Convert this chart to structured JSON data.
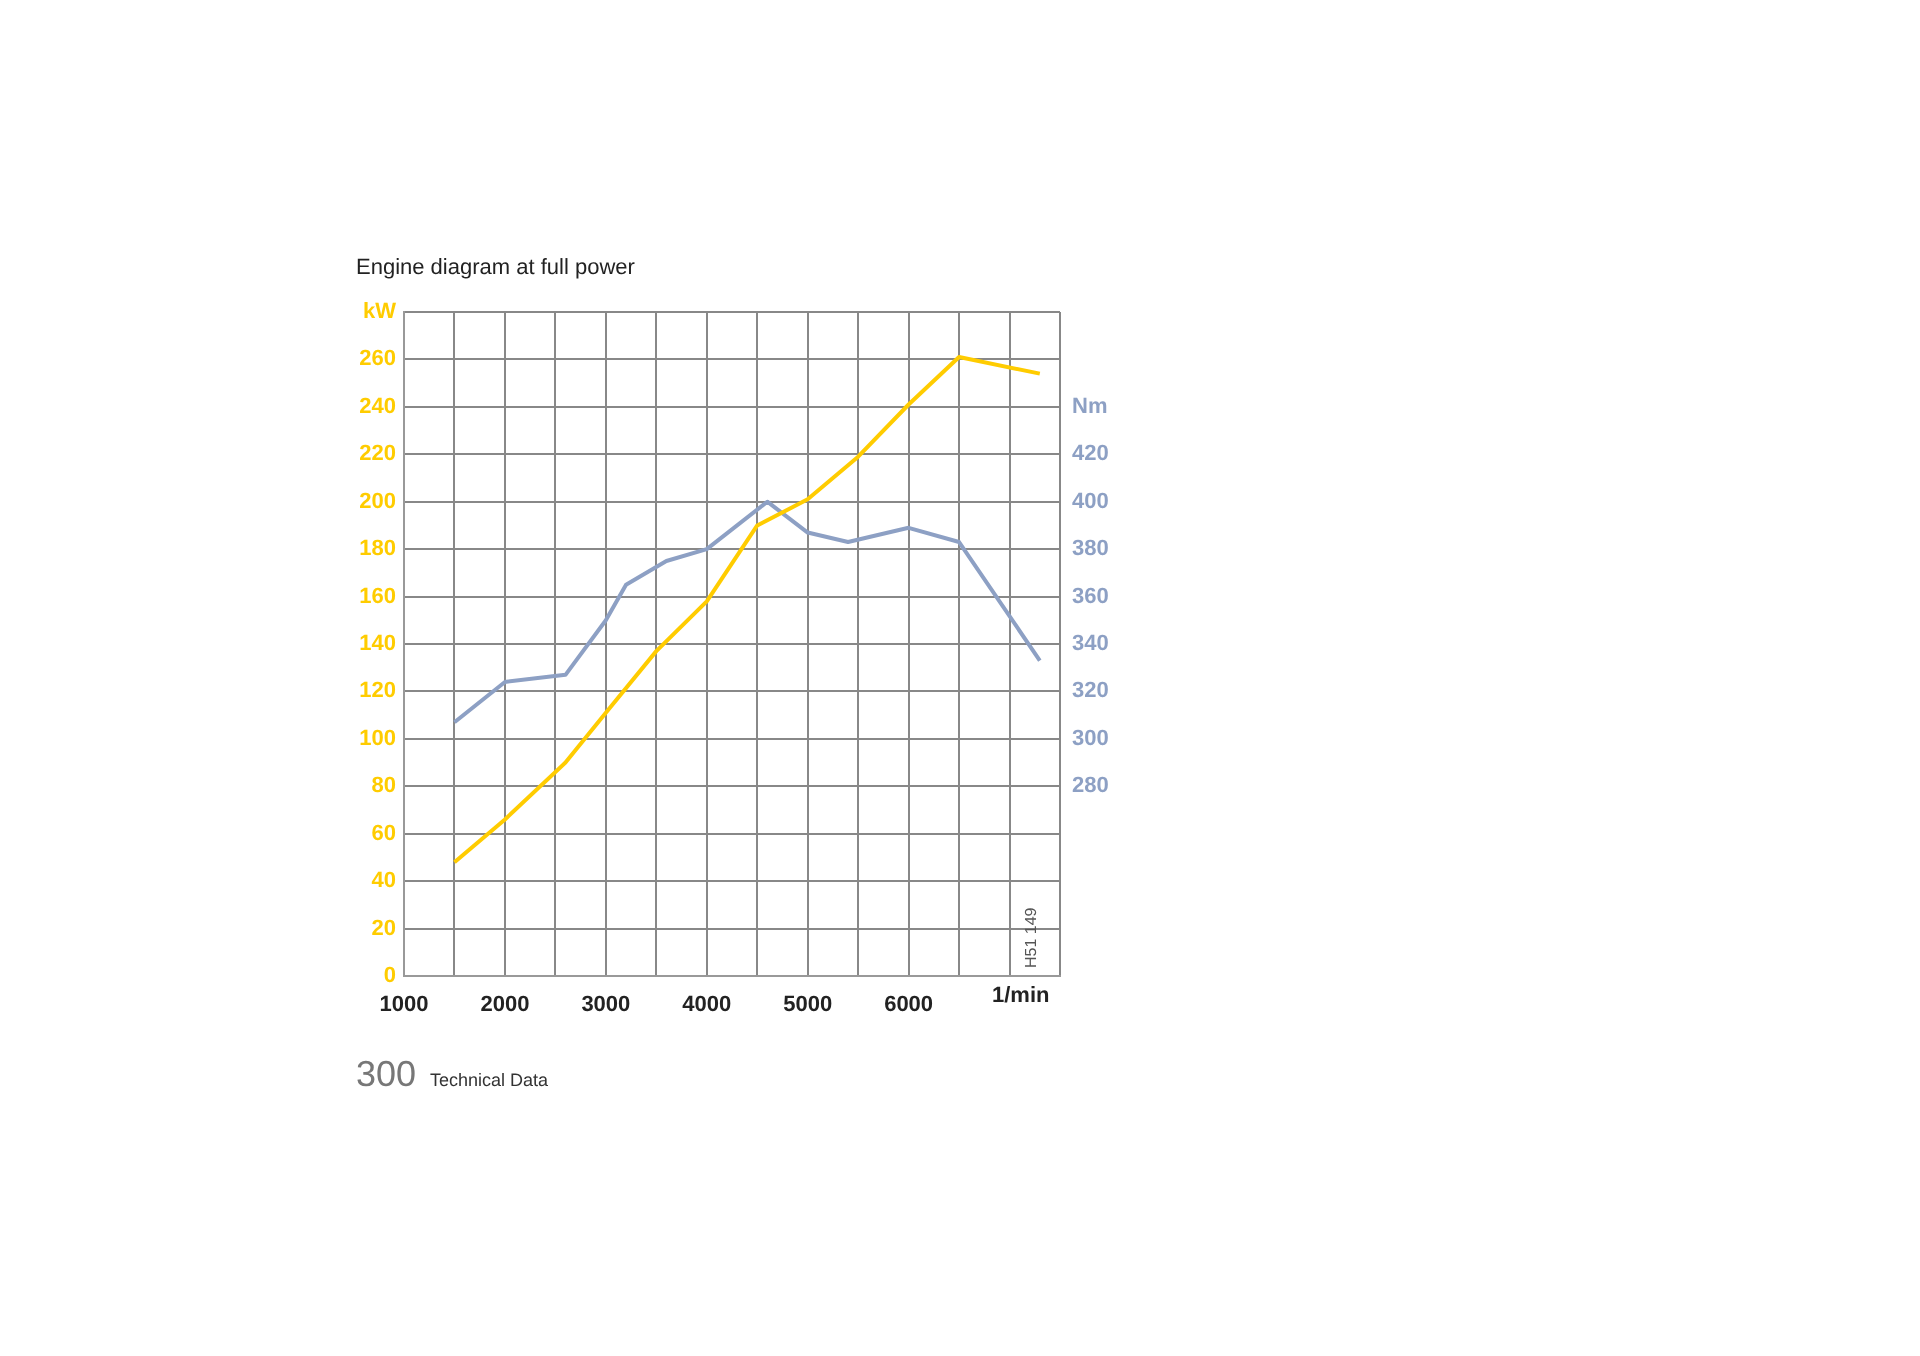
{
  "chart_data": {
    "type": "line",
    "title": "Engine diagram at full power",
    "xlabel": "1/min",
    "annotations": [
      "H51 149",
      "300",
      "Technical Data"
    ],
    "xlim": [
      1000,
      7500
    ],
    "xticks": [
      1000,
      {
        "value": 1500,
        "label": null
      },
      2000,
      {
        "value": 2500,
        "label": null
      },
      3000,
      {
        "value": 3500,
        "label": null
      },
      4000,
      {
        "value": 4500,
        "label": null
      },
      5000,
      {
        "value": 5500,
        "label": null
      },
      6000,
      {
        "value": 6500,
        "label": null
      },
      {
        "value": 7000,
        "label": null
      },
      {
        "value": 7500,
        "label": null
      }
    ],
    "ylim": [
      0,
      280
    ],
    "yticks": [
      0,
      20,
      40,
      60,
      80,
      100,
      120,
      140,
      160,
      180,
      200,
      220,
      240,
      260,
      {
        "value": 280,
        "label": "kW"
      }
    ],
    "y2lim": [
      200,
      480
    ],
    "y2ticks": [
      280,
      300,
      320,
      340,
      360,
      380,
      400,
      420,
      {
        "value": 440,
        "label": "Nm"
      }
    ],
    "grid": true,
    "legend": false,
    "marker": "none",
    "line_style": "solid",
    "series": [
      {
        "color": "#ffcc00",
        "x": [
          1500,
          2000,
          2600,
          3000,
          3500,
          4000,
          4500,
          5000,
          5500,
          6000,
          6500,
          7300
        ],
        "values": [
          48,
          66,
          90,
          111,
          137,
          158,
          190,
          201,
          219,
          241,
          261,
          254
        ]
      },
      {
        "color": "#8da0c4",
        "axis": "y2",
        "x": [
          1500,
          2000,
          2600,
          3000,
          3200,
          3600,
          4000,
          4600,
          5000,
          5400,
          6000,
          6500,
          7300
        ],
        "values": [
          307,
          324,
          327,
          350,
          365,
          375,
          380,
          400,
          387,
          383,
          389,
          383,
          333
        ]
      }
    ]
  }
}
